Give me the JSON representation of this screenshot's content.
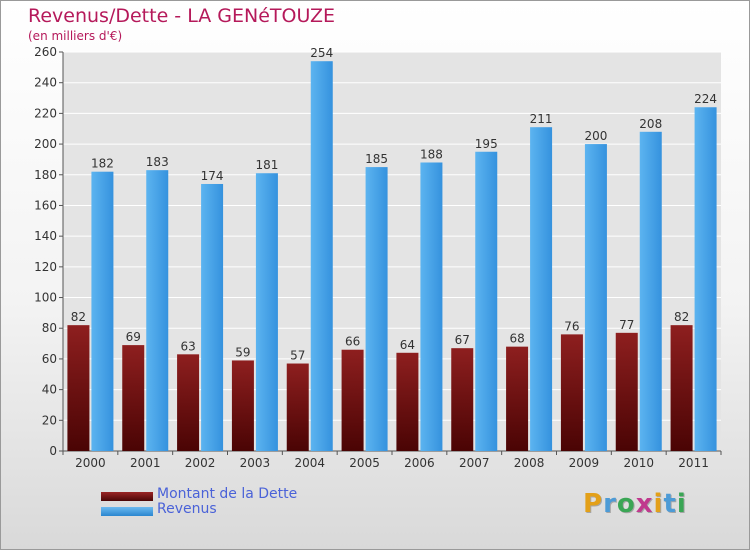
{
  "chart_data": {
    "type": "bar",
    "title": "Revenus/Dette - LA GENéTOUZE",
    "subtitle": "(en milliers d'€)",
    "categories": [
      "2000",
      "2001",
      "2002",
      "2003",
      "2004",
      "2005",
      "2006",
      "2007",
      "2008",
      "2009",
      "2010",
      "2011"
    ],
    "series": [
      {
        "name": "Montant de la Dette",
        "color": "#7a0d0d",
        "values": [
          82,
          69,
          63,
          59,
          57,
          66,
          64,
          67,
          68,
          76,
          77,
          82
        ]
      },
      {
        "name": "Revenus",
        "color": "#3d9fe8",
        "values": [
          182,
          183,
          174,
          181,
          254,
          185,
          188,
          195,
          211,
          200,
          208,
          224
        ]
      }
    ],
    "ylim": [
      0,
      260
    ],
    "yticks": [
      0,
      20,
      40,
      60,
      80,
      100,
      120,
      140,
      160,
      180,
      200,
      220,
      240,
      260
    ],
    "grid": true,
    "legend": "bottom-left"
  },
  "logo": {
    "letters": [
      "P",
      "r",
      "o",
      "x",
      "i",
      "t",
      "i"
    ],
    "colors": [
      "#e3a019",
      "#4d9bd6",
      "#3aa655",
      "#c03a8e",
      "#e3a019",
      "#4d9bd6",
      "#3aa655"
    ]
  }
}
